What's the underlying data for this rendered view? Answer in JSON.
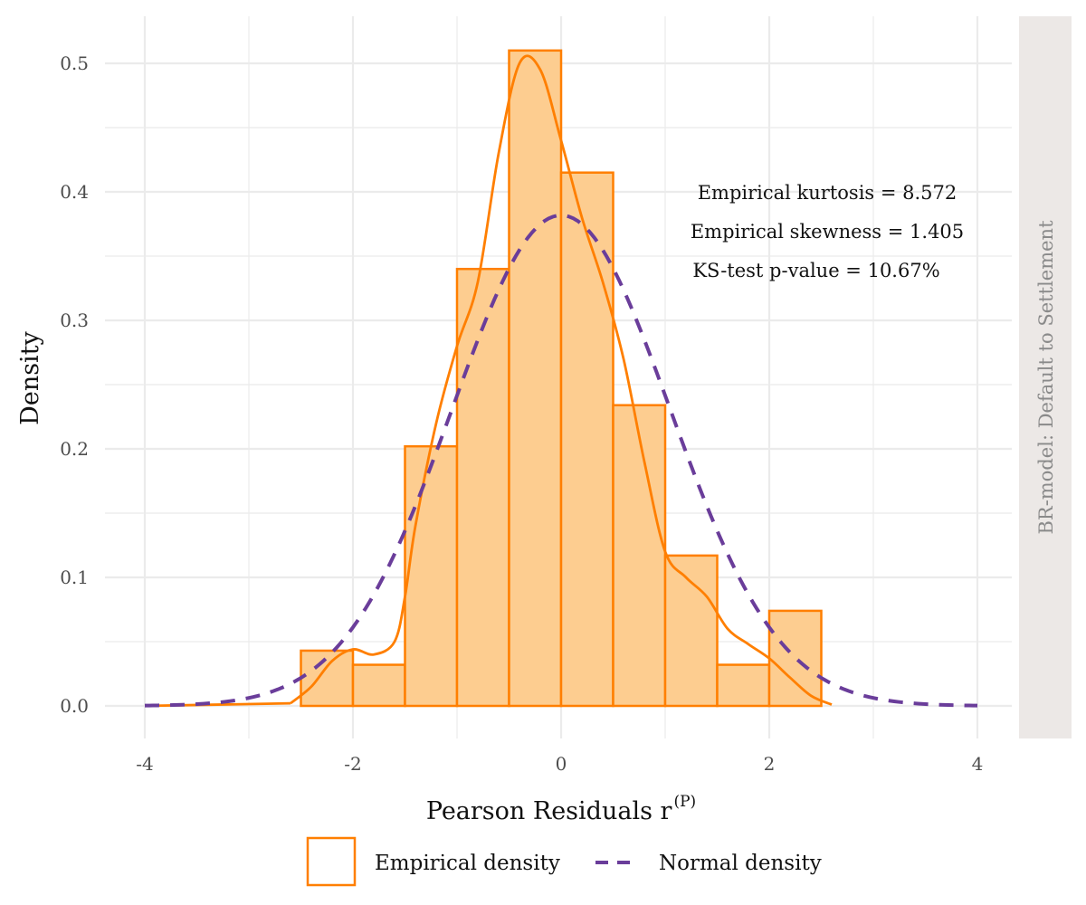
{
  "chart_data": {
    "type": "histogram",
    "xlabel": "Pearson Residuals r",
    "xlabel_superscript": "(P)",
    "ylabel": "Density",
    "xlim": [
      -4,
      4
    ],
    "ylim": [
      0,
      0.52
    ],
    "xticks": [
      -4,
      -2,
      0,
      2,
      4
    ],
    "xtick_labels": [
      "-4",
      "-2",
      "0",
      "2",
      "4"
    ],
    "yticks": [
      0.0,
      0.1,
      0.2,
      0.3,
      0.4,
      0.5
    ],
    "ytick_labels": [
      "0.0",
      "0.1",
      "0.2",
      "0.3",
      "0.4",
      "0.5"
    ],
    "grid": true,
    "facet_label": "BR-model: Default to Settlement",
    "histogram": {
      "bin_width": 0.5,
      "bins": [
        {
          "x0": -2.5,
          "x1": -2.0,
          "density": 0.043
        },
        {
          "x0": -2.0,
          "x1": -1.5,
          "density": 0.032
        },
        {
          "x0": -1.5,
          "x1": -1.0,
          "density": 0.202
        },
        {
          "x0": -1.0,
          "x1": -0.5,
          "density": 0.34
        },
        {
          "x0": -0.5,
          "x1": 0.0,
          "density": 0.51
        },
        {
          "x0": 0.0,
          "x1": 0.5,
          "density": 0.415
        },
        {
          "x0": 0.5,
          "x1": 1.0,
          "density": 0.234
        },
        {
          "x0": 1.0,
          "x1": 1.5,
          "density": 0.117
        },
        {
          "x0": 1.5,
          "x1": 2.0,
          "density": 0.032
        },
        {
          "x0": 2.0,
          "x1": 2.5,
          "density": 0.074
        }
      ]
    },
    "series": [
      {
        "name": "Empirical density",
        "type": "line",
        "x": [
          -2.6,
          -2.4,
          -2.2,
          -2.0,
          -1.8,
          -1.6,
          -1.5,
          -1.4,
          -1.2,
          -1.0,
          -0.8,
          -0.6,
          -0.4,
          -0.2,
          0.0,
          0.2,
          0.4,
          0.6,
          0.8,
          1.0,
          1.2,
          1.4,
          1.6,
          1.8,
          2.0,
          2.2,
          2.4,
          2.6
        ],
        "y": [
          0.002,
          0.015,
          0.035,
          0.044,
          0.04,
          0.05,
          0.085,
          0.14,
          0.22,
          0.28,
          0.33,
          0.43,
          0.5,
          0.495,
          0.44,
          0.38,
          0.33,
          0.27,
          0.19,
          0.12,
          0.1,
          0.085,
          0.06,
          0.048,
          0.037,
          0.022,
          0.008,
          0.001
        ]
      },
      {
        "name": "Normal density",
        "type": "line",
        "dash": true,
        "mean": 0.0,
        "sd": 1.045
      }
    ],
    "annotations": [
      "Empirical kurtosis = 8.572",
      "Empirical skewness = 1.405",
      "KS-test p-value = 10.67%"
    ],
    "legend": {
      "position": "bottom",
      "entries": [
        "Empirical density",
        "Normal density"
      ]
    },
    "colors": {
      "empirical": "#ff7f00",
      "fill": "#fdcd90",
      "normal": "#6a3d9a",
      "grid": "#ebebeb",
      "strip": "#ece8e6"
    }
  }
}
